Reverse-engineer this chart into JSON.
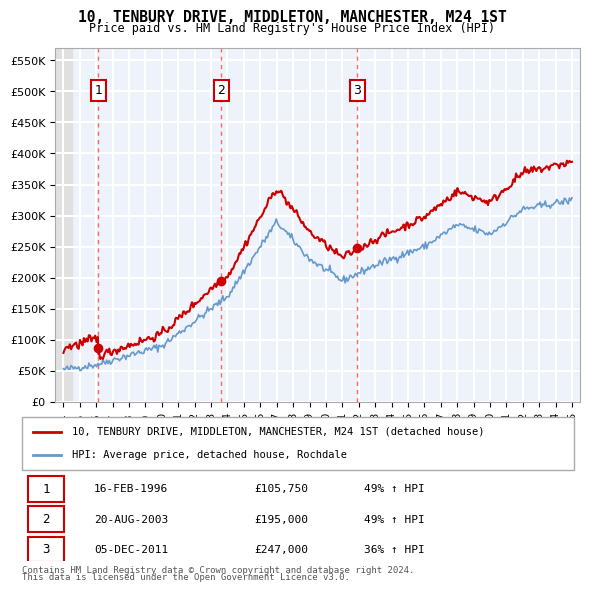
{
  "title": "10, TENBURY DRIVE, MIDDLETON, MANCHESTER, M24 1ST",
  "subtitle": "Price paid vs. HM Land Registry's House Price Index (HPI)",
  "legend_line1": "10, TENBURY DRIVE, MIDDLETON, MANCHESTER, M24 1ST (detached house)",
  "legend_line2": "HPI: Average price, detached house, Rochdale",
  "footer1": "Contains HM Land Registry data © Crown copyright and database right 2024.",
  "footer2": "This data is licensed under the Open Government Licence v3.0.",
  "transactions": [
    {
      "num": 1,
      "date": "16-FEB-1996",
      "price": 105750,
      "hpi_pct": "49%",
      "x": 1996.12
    },
    {
      "num": 2,
      "date": "20-AUG-2003",
      "price": 195000,
      "hpi_pct": "49%",
      "x": 2003.63
    },
    {
      "num": 3,
      "date": "05-DEC-2011",
      "price": 247000,
      "hpi_pct": "36%",
      "x": 2011.92
    }
  ],
  "vline_color": "#ff6666",
  "vline_style": "dotted",
  "dot_color": "#cc0000",
  "red_line_color": "#cc0000",
  "blue_line_color": "#6699cc",
  "hatch_color": "#cccccc",
  "ylim": [
    0,
    570000
  ],
  "xlim_start": 1993.5,
  "xlim_end": 2025.5,
  "yticks": [
    0,
    50000,
    100000,
    150000,
    200000,
    250000,
    300000,
    350000,
    400000,
    450000,
    500000,
    550000
  ],
  "ytick_labels": [
    "£0",
    "£50K",
    "£100K",
    "£150K",
    "£200K",
    "£250K",
    "£300K",
    "£350K",
    "£400K",
    "£450K",
    "£500K",
    "£550K"
  ],
  "xticks": [
    1994,
    1995,
    1996,
    1997,
    1998,
    1999,
    2000,
    2001,
    2002,
    2003,
    2004,
    2005,
    2006,
    2007,
    2008,
    2009,
    2010,
    2011,
    2012,
    2013,
    2014,
    2015,
    2016,
    2017,
    2018,
    2019,
    2020,
    2021,
    2022,
    2023,
    2024,
    2025
  ],
  "background_plot": "#eef3fb",
  "background_hatch": "#e0e0e0",
  "grid_color": "#ffffff",
  "label_box_color": "#ffffff",
  "label_box_edge": "#cc0000"
}
